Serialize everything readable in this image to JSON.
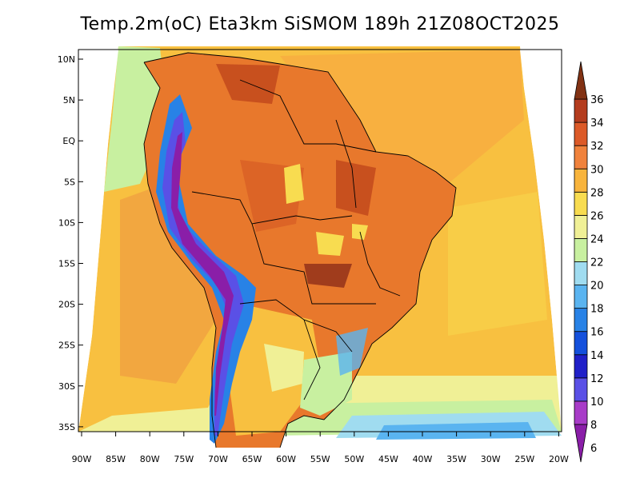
{
  "title": "Temp.2m(oC) Eta3km SiSMOM 189h 21Z08OCT2025",
  "map": {
    "lat_labels": [
      "10N",
      "5N",
      "EQ",
      "5S",
      "10S",
      "15S",
      "20S",
      "25S",
      "30S",
      "35S"
    ],
    "lon_labels": [
      "90W",
      "85W",
      "80W",
      "75W",
      "70W",
      "65W",
      "60W",
      "55W",
      "50W",
      "45W",
      "40W",
      "35W",
      "30W",
      "25W",
      "20W"
    ]
  },
  "colorbar": {
    "unit": "oC",
    "levels": [
      6,
      8,
      10,
      12,
      14,
      16,
      18,
      20,
      22,
      24,
      26,
      28,
      30,
      32,
      34,
      36
    ],
    "colors": [
      "#8a1ea8",
      "#a83cc8",
      "#5a50e6",
      "#2020c8",
      "#1450dc",
      "#2882e6",
      "#5ab4f0",
      "#a0dcf0",
      "#c8f0a0",
      "#f0f096",
      "#f8dc50",
      "#f8b43c",
      "#f0823c",
      "#dc5a28",
      "#b43c1e",
      "#823214"
    ]
  }
}
